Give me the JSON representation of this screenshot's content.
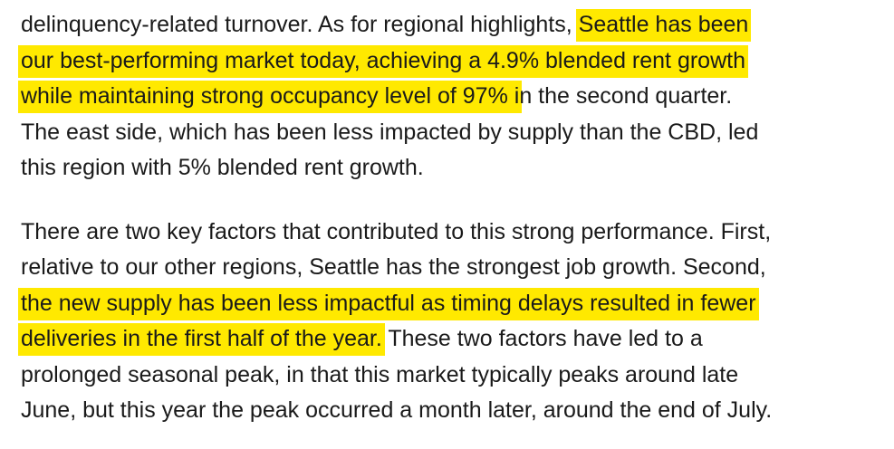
{
  "paragraphs": [
    {
      "lines": [
        [
          {
            "text": "delinquency-related turnover. As for regional highlights, ",
            "highlight": false
          },
          {
            "text": "Seattle has been",
            "highlight": true
          }
        ],
        [
          {
            "text": "our best-performing market today, achieving a 4.9% blended rent growth",
            "highlight": true
          }
        ],
        [
          {
            "text": "while maintaining strong occupancy level of 97% i",
            "highlight": true
          },
          {
            "text": "n the second quarter.",
            "highlight": false
          }
        ],
        [
          {
            "text": "The east side, which has been less impacted by supply than the CBD, led",
            "highlight": false
          }
        ],
        [
          {
            "text": "this region with 5% blended rent growth.",
            "highlight": false
          }
        ]
      ]
    },
    {
      "lines": [
        [
          {
            "text": "There are two key factors that contributed to this strong performance. First,",
            "highlight": false
          }
        ],
        [
          {
            "text": "relative to our other regions, Seattle has the strongest job growth. Second,",
            "highlight": false
          }
        ],
        [
          {
            "text": "the new supply has been less impactful as timing delays resulted in fewer",
            "highlight": true
          }
        ],
        [
          {
            "text": "deliveries in the first half of the year.",
            "highlight": true
          },
          {
            "text": " These two factors have led to a",
            "highlight": false
          }
        ],
        [
          {
            "text": "prolonged seasonal peak, in that this market typically peaks around late",
            "highlight": false
          }
        ],
        [
          {
            "text": "June, but this year the peak occurred a month later, around the end of July.",
            "highlight": false
          }
        ]
      ]
    }
  ]
}
